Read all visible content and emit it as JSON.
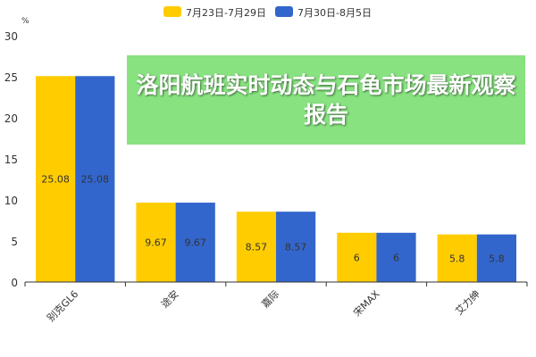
{
  "chart_data": {
    "type": "bar",
    "ylabel": "%",
    "ylim": [
      0,
      30
    ],
    "yticks": [
      0,
      5,
      10,
      15,
      20,
      25,
      30
    ],
    "grid": false,
    "legend_position": "top-center",
    "categories": [
      "别克GL6",
      "途安",
      "嘉际",
      "宋MAX",
      "艾力绅"
    ],
    "series": [
      {
        "name": "7月23日-7月29日",
        "color": "#FFCC00",
        "values": [
          25.08,
          9.67,
          8.57,
          6,
          5.8
        ],
        "labels": [
          "25.08",
          "9.67",
          "8.57",
          "6",
          "5.8"
        ]
      },
      {
        "name": "7月30日-8月5日",
        "color": "#3366CC",
        "values": [
          25.08,
          9.67,
          8.57,
          6,
          5.8
        ],
        "labels": [
          "25.08",
          "9.67",
          "8.57",
          "6",
          "5.8"
        ]
      }
    ]
  },
  "banner": {
    "title": "洛阳航班实时动态与石龟市场最新观察报告",
    "color": "#6EDC64"
  }
}
